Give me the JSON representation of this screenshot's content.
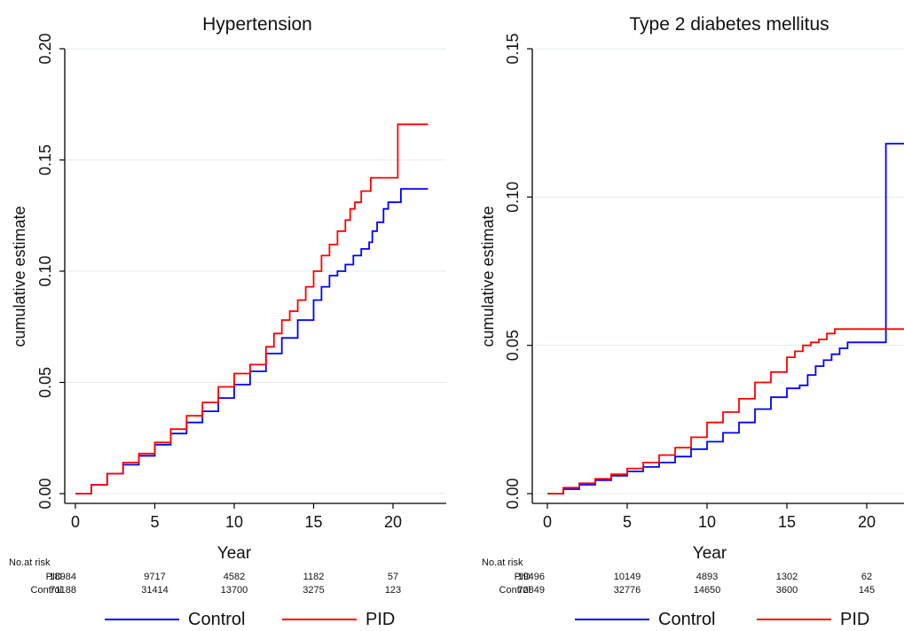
{
  "chart_data": [
    {
      "type": "line",
      "title": "Hypertension",
      "xlabel": "Year",
      "ylabel": "cumulative estimate",
      "xlim": [
        0,
        22.5
      ],
      "ylim": [
        0,
        0.2
      ],
      "xticks": [
        "0",
        "5",
        "10",
        "15",
        "20"
      ],
      "xtick_values": [
        0,
        5,
        10,
        15,
        20
      ],
      "yticks": [
        "0.00",
        "0.05",
        "0.10",
        "0.15",
        "0.20"
      ],
      "ytick_values": [
        0,
        0.05,
        0.1,
        0.15,
        0.2
      ],
      "grid": "horizontal",
      "series": [
        {
          "name": "Control",
          "color": "#0000ff",
          "step": false,
          "x": [
            0,
            1,
            2,
            3,
            4,
            5,
            6,
            7,
            8,
            9,
            10,
            11,
            12,
            13,
            14,
            15,
            15.5,
            16,
            16.5,
            17,
            17.5,
            18,
            18.5,
            18.7,
            19,
            19.4,
            19.7,
            20.5,
            22.2
          ],
          "y": [
            0,
            0.004,
            0.009,
            0.013,
            0.017,
            0.022,
            0.027,
            0.032,
            0.037,
            0.043,
            0.049,
            0.055,
            0.063,
            0.07,
            0.078,
            0.087,
            0.093,
            0.098,
            0.1,
            0.103,
            0.107,
            0.11,
            0.113,
            0.118,
            0.122,
            0.128,
            0.131,
            0.137,
            0.137
          ]
        },
        {
          "name": "PID",
          "color": "#ff0000",
          "step": false,
          "x": [
            0,
            1,
            2,
            3,
            4,
            5,
            6,
            7,
            8,
            9,
            10,
            11,
            12,
            12.5,
            13,
            13.5,
            14,
            14.5,
            15,
            15.5,
            16,
            16.5,
            17,
            17.3,
            17.6,
            18,
            18.3,
            18.6,
            20.3,
            20.3,
            22.2
          ],
          "y": [
            0,
            0.004,
            0.009,
            0.014,
            0.018,
            0.023,
            0.029,
            0.035,
            0.041,
            0.048,
            0.054,
            0.058,
            0.066,
            0.072,
            0.078,
            0.082,
            0.087,
            0.093,
            0.1,
            0.107,
            0.112,
            0.118,
            0.123,
            0.128,
            0.131,
            0.136,
            0.136,
            0.142,
            0.142,
            0.166,
            0.166
          ]
        }
      ],
      "risk_table": {
        "header": "No.at risk",
        "rows": [
          {
            "label": "PID",
            "values": [
              "18984",
              "9717",
              "4582",
              "1182",
              "57"
            ]
          },
          {
            "label": "Control",
            "values": [
              "71188",
              "31414",
              "13700",
              "3275",
              "123"
            ]
          }
        ]
      }
    },
    {
      "type": "line",
      "title": "Type 2 diabetes mellitus",
      "xlabel": "Year",
      "ylabel": "cumulative estimate",
      "xlim": [
        0,
        22.5
      ],
      "ylim": [
        0,
        0.15
      ],
      "xticks": [
        "0",
        "5",
        "10",
        "15",
        "20"
      ],
      "xtick_values": [
        0,
        5,
        10,
        15,
        20
      ],
      "yticks": [
        "0.00",
        "0.05",
        "0.10",
        "0.15"
      ],
      "ytick_values": [
        0,
        0.05,
        0.1,
        0.15
      ],
      "grid": "horizontal",
      "series": [
        {
          "name": "Control",
          "color": "#0000ff",
          "step": false,
          "x": [
            0,
            1,
            2,
            3,
            4,
            5,
            6,
            7,
            8,
            9,
            10,
            11,
            12,
            13,
            14,
            15,
            15.8,
            16.3,
            16.8,
            17.3,
            17.8,
            18.3,
            18.8,
            19.3,
            20.3,
            21.2,
            21.2,
            22.5
          ],
          "y": [
            0,
            0.0015,
            0.003,
            0.0045,
            0.006,
            0.0075,
            0.009,
            0.0105,
            0.0125,
            0.015,
            0.0175,
            0.0205,
            0.024,
            0.0285,
            0.0325,
            0.0355,
            0.0365,
            0.04,
            0.043,
            0.045,
            0.047,
            0.049,
            0.051,
            0.051,
            0.051,
            0.051,
            0.118,
            0.118
          ]
        },
        {
          "name": "PID",
          "color": "#ff0000",
          "step": false,
          "x": [
            0,
            1,
            2,
            3,
            4,
            5,
            6,
            7,
            8,
            9,
            10,
            11,
            12,
            13,
            14,
            15,
            15.5,
            16,
            16.5,
            17,
            17.5,
            18,
            19,
            20,
            21,
            22.5
          ],
          "y": [
            0,
            0.002,
            0.0035,
            0.005,
            0.0065,
            0.0085,
            0.0105,
            0.013,
            0.0155,
            0.019,
            0.024,
            0.0275,
            0.032,
            0.0375,
            0.041,
            0.046,
            0.048,
            0.05,
            0.051,
            0.052,
            0.054,
            0.0555,
            0.0555,
            0.0555,
            0.0555,
            0.0555
          ]
        }
      ],
      "risk_table": {
        "header": "No.at risk",
        "rows": [
          {
            "label": "PID",
            "values": [
              "19496",
              "10149",
              "4893",
              "1302",
              "62"
            ]
          },
          {
            "label": "Control",
            "values": [
              "72849",
              "32776",
              "14650",
              "3600",
              "145"
            ]
          }
        ]
      }
    }
  ]
}
